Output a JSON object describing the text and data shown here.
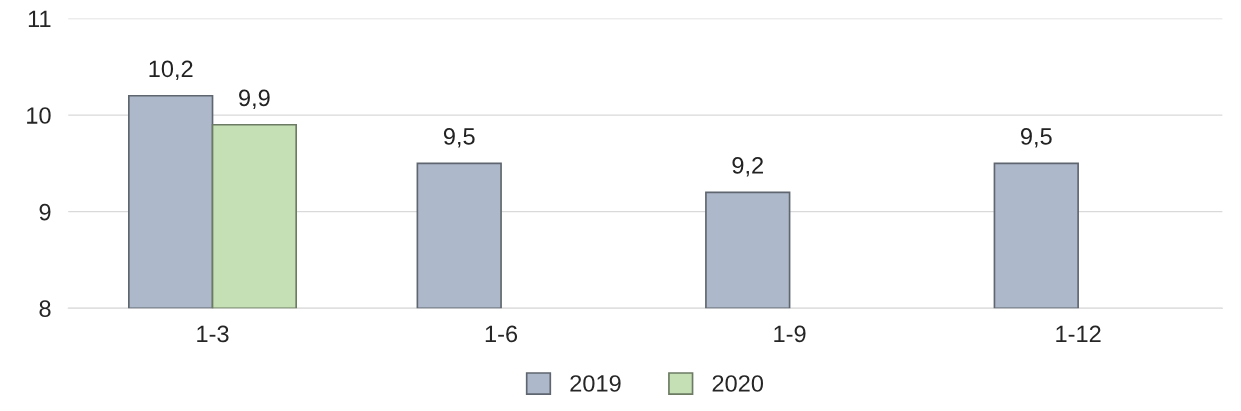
{
  "chart_data": {
    "type": "bar",
    "categories": [
      "1-3",
      "1-6",
      "1-9",
      "1-12"
    ],
    "series": [
      {
        "name": "2019",
        "color": "#adb9ca",
        "values": [
          10.2,
          9.5,
          9.2,
          9.5
        ],
        "value_labels": [
          "10,2",
          "9,5",
          "9,2",
          "9,5"
        ]
      },
      {
        "name": "2020",
        "color": "#c5e0b4",
        "values": [
          9.9,
          null,
          null,
          null
        ],
        "value_labels": [
          "9,9",
          null,
          null,
          null
        ]
      }
    ],
    "ylim": [
      8,
      11
    ],
    "yticks": [
      8,
      9,
      10,
      11
    ],
    "grid": "y",
    "legend": "bottom"
  }
}
